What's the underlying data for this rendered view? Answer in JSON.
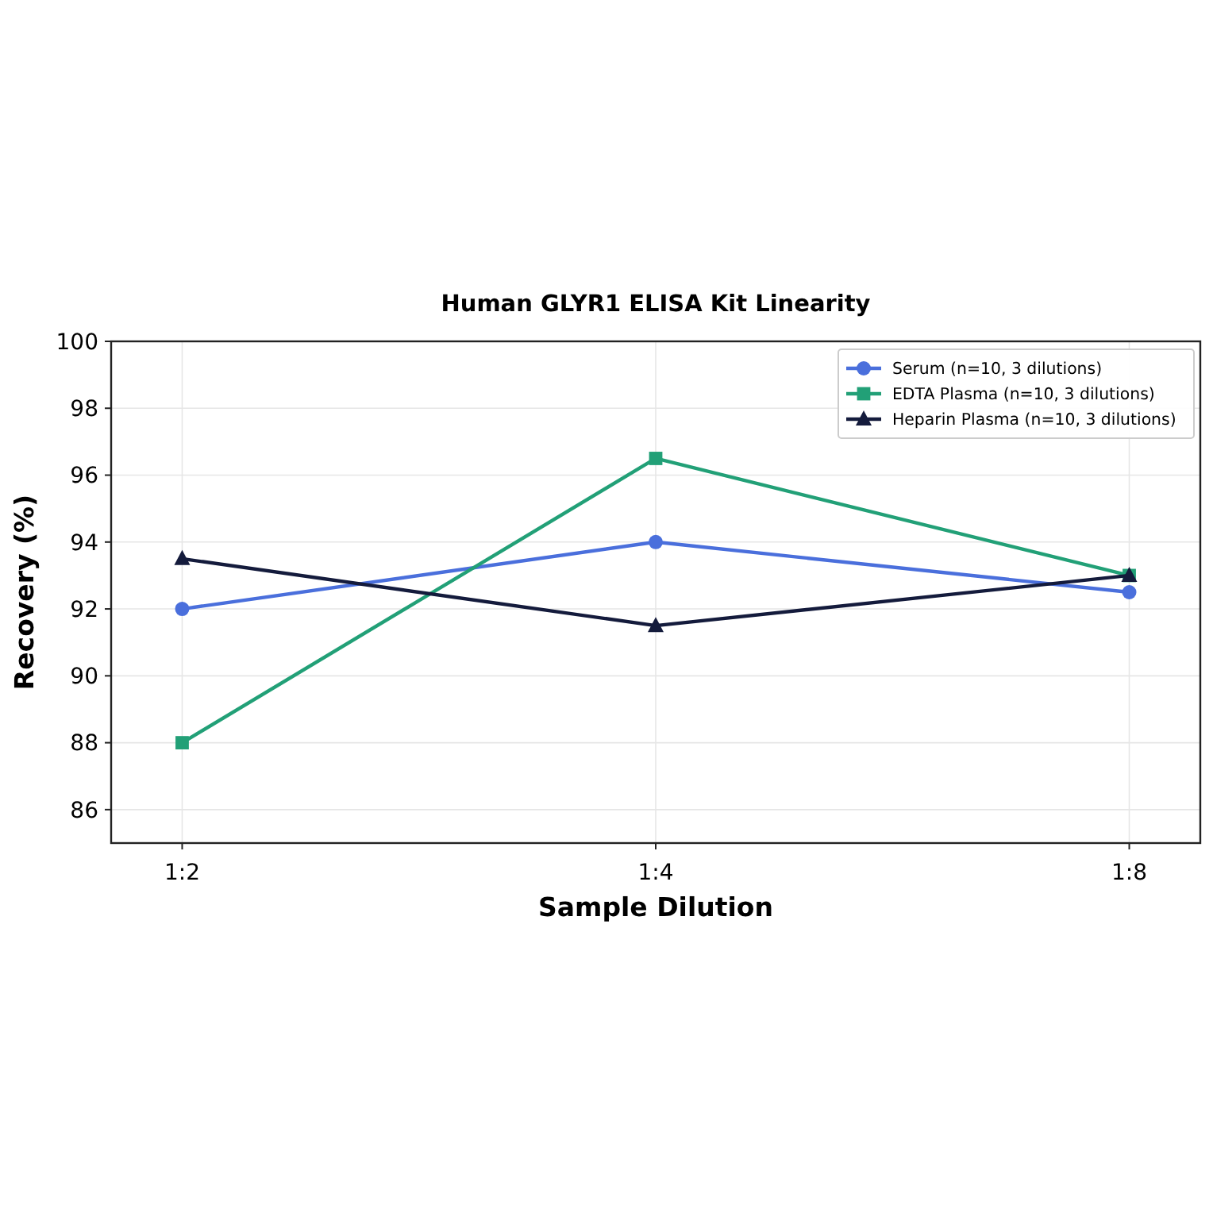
{
  "chart_data": {
    "type": "line",
    "title": "Human GLYR1 ELISA Kit Linearity",
    "xlabel": "Sample Dilution",
    "ylabel": "Recovery (%)",
    "categories": [
      "1:2",
      "1:4",
      "1:8"
    ],
    "series": [
      {
        "name": "Serum (n=10, 3 dilutions)",
        "color": "#4a6fdc",
        "marker": "circle",
        "values": [
          92,
          94,
          92.5
        ]
      },
      {
        "name": "EDTA Plasma (n=10, 3 dilutions)",
        "color": "#22a077",
        "marker": "square",
        "values": [
          88,
          96.5,
          93
        ]
      },
      {
        "name": "Heparin Plasma (n=10, 3 dilutions)",
        "color": "#141b3c",
        "marker": "triangle",
        "values": [
          93.5,
          91.5,
          93
        ]
      }
    ],
    "ylim": [
      85,
      100
    ],
    "yticks": [
      86,
      88,
      90,
      92,
      94,
      96,
      98,
      100
    ],
    "grid": true,
    "legend": "top right",
    "line_style": "solid"
  }
}
